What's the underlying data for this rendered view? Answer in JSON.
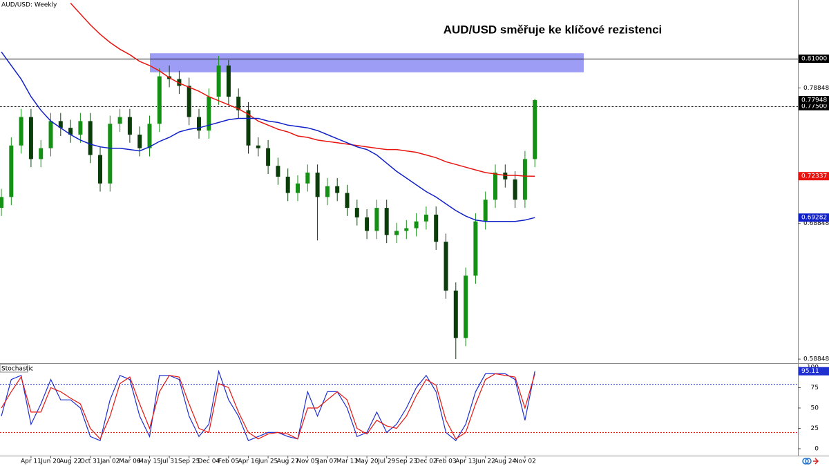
{
  "chart_data": [
    {
      "type": "candlestick",
      "subtitle": "AUD/USD: Weekly",
      "title": "AUD/USD směřuje ke klíčové rezistenci",
      "categories": [
        null,
        null,
        null,
        "Apr 11",
        null,
        "Jun 20",
        null,
        "Aug 22",
        null,
        "Oct 31",
        null,
        "Jan 02",
        null,
        "Mar 06",
        null,
        "May 15",
        null,
        "Jul 31",
        null,
        "Sep 25",
        null,
        "Dec 04",
        null,
        "Feb 05",
        null,
        "Apr 16",
        null,
        "Jun 25",
        null,
        "Aug 27",
        null,
        "Nov 05",
        null,
        "Jan 07",
        null,
        "Mar 11",
        null,
        "May 20",
        null,
        "Jul 29",
        null,
        "Sep 23",
        null,
        "Dec 02",
        null,
        "Feb 03",
        null,
        "Apr 13",
        null,
        "Jun 22",
        null,
        "Aug 24",
        null,
        "Nov 02",
        null
      ],
      "open": [
        0.7,
        0.708,
        0.746,
        0.767,
        0.736,
        0.744,
        0.764,
        0.759,
        0.754,
        0.764,
        0.739,
        0.718,
        0.762,
        0.767,
        0.754,
        0.744,
        0.762,
        0.797,
        0.795,
        0.79,
        0.767,
        0.757,
        0.782,
        0.805,
        0.782,
        0.772,
        0.746,
        0.744,
        0.731,
        0.723,
        0.711,
        0.718,
        0.726,
        0.708,
        0.716,
        0.711,
        0.7,
        0.693,
        0.683,
        0.7,
        0.68,
        0.683,
        0.685,
        0.69,
        0.695,
        0.675,
        0.639,
        0.604,
        0.65,
        0.69,
        0.706,
        0.726,
        0.721,
        0.706,
        0.736
      ],
      "high": [
        0.714,
        0.752,
        0.773,
        0.773,
        0.75,
        0.77,
        0.77,
        0.765,
        0.77,
        0.77,
        0.745,
        0.768,
        0.773,
        0.773,
        0.76,
        0.768,
        0.803,
        0.805,
        0.801,
        0.796,
        0.773,
        0.788,
        0.812,
        0.809,
        0.788,
        0.778,
        0.752,
        0.75,
        0.737,
        0.729,
        0.724,
        0.732,
        0.732,
        0.722,
        0.722,
        0.717,
        0.706,
        0.699,
        0.706,
        0.706,
        0.689,
        0.691,
        0.696,
        0.701,
        0.701,
        0.681,
        0.645,
        0.656,
        0.696,
        0.712,
        0.732,
        0.732,
        0.727,
        0.742,
        0.7805
      ],
      "low": [
        0.694,
        0.702,
        0.74,
        0.73,
        0.73,
        0.738,
        0.753,
        0.748,
        0.748,
        0.733,
        0.712,
        0.712,
        0.756,
        0.748,
        0.738,
        0.738,
        0.756,
        0.789,
        0.784,
        0.761,
        0.751,
        0.751,
        0.776,
        0.776,
        0.766,
        0.74,
        0.738,
        0.725,
        0.717,
        0.705,
        0.705,
        0.712,
        0.676,
        0.702,
        0.705,
        0.694,
        0.687,
        0.677,
        0.677,
        0.674,
        0.674,
        0.677,
        0.679,
        0.684,
        0.669,
        0.633,
        0.5885,
        0.598,
        0.644,
        0.684,
        0.7,
        0.715,
        0.7,
        0.7,
        0.73
      ],
      "close": [
        0.708,
        0.746,
        0.767,
        0.736,
        0.744,
        0.764,
        0.759,
        0.754,
        0.764,
        0.739,
        0.718,
        0.762,
        0.767,
        0.754,
        0.744,
        0.762,
        0.797,
        0.795,
        0.79,
        0.767,
        0.757,
        0.782,
        0.805,
        0.782,
        0.772,
        0.746,
        0.744,
        0.731,
        0.723,
        0.711,
        0.718,
        0.726,
        0.708,
        0.716,
        0.711,
        0.7,
        0.693,
        0.683,
        0.7,
        0.68,
        0.683,
        0.685,
        0.69,
        0.695,
        0.675,
        0.639,
        0.604,
        0.65,
        0.69,
        0.706,
        0.726,
        0.721,
        0.706,
        0.736,
        0.77948
      ],
      "close_label": "0.77948",
      "up_color": "#149114",
      "down_color": "#0b3d0b",
      "lines": [
        {
          "color": "#e8140f",
          "last_label": "0.72337",
          "values": [
            null,
            null,
            null,
            null,
            null,
            null,
            null,
            0.851,
            0.843,
            0.835,
            0.828,
            0.822,
            0.817,
            0.813,
            0.808,
            0.805,
            0.801,
            0.796,
            0.792,
            0.789,
            0.786,
            0.782,
            0.779,
            0.776,
            0.773,
            0.769,
            0.764,
            0.761,
            0.758,
            0.756,
            0.753,
            0.752,
            0.75,
            0.749,
            0.748,
            0.747,
            0.746,
            0.745,
            0.744,
            0.743,
            0.743,
            0.742,
            0.741,
            0.739,
            0.737,
            0.734,
            0.732,
            0.73,
            0.728,
            0.726,
            0.725,
            0.724,
            0.724,
            0.7234,
            0.72337
          ]
        },
        {
          "color": "#1020c8",
          "last_label": "0.69282",
          "values": [
            0.815,
            0.805,
            0.795,
            0.782,
            0.772,
            0.764,
            0.759,
            0.754,
            0.75,
            0.747,
            0.745,
            0.744,
            0.744,
            0.743,
            0.742,
            0.745,
            0.749,
            0.752,
            0.756,
            0.758,
            0.759,
            0.761,
            0.763,
            0.765,
            0.766,
            0.766,
            0.766,
            0.764,
            0.763,
            0.761,
            0.76,
            0.759,
            0.757,
            0.754,
            0.751,
            0.748,
            0.745,
            0.743,
            0.739,
            0.733,
            0.727,
            0.722,
            0.717,
            0.712,
            0.708,
            0.703,
            0.698,
            0.694,
            0.691,
            0.69,
            0.69,
            0.69,
            0.69,
            0.691,
            0.69282
          ]
        }
      ],
      "levels": [
        {
          "value": 0.81,
          "label": "0.81000",
          "style": "solid"
        },
        {
          "value": 0.775,
          "label": "0.77500",
          "style": "dotted"
        }
      ],
      "zones": [
        {
          "from": 0.8,
          "to": 0.814,
          "color": "#8c8cf5"
        }
      ],
      "ylim": [
        0.586,
        0.8533
      ],
      "yticks": [
        0.58848,
        0.68848,
        0.78848
      ]
    },
    {
      "type": "stochastic",
      "title": "Stochastic",
      "series": [
        {
          "color": "#1f2fd0",
          "values": [
            40,
            85,
            90,
            30,
            55,
            85,
            60,
            60,
            50,
            15,
            10,
            60,
            90,
            85,
            40,
            15,
            90,
            90,
            85,
            40,
            15,
            30,
            95,
            60,
            40,
            10,
            15,
            20,
            20,
            15,
            12,
            70,
            40,
            70,
            70,
            50,
            15,
            20,
            45,
            20,
            30,
            50,
            75,
            90,
            70,
            20,
            10,
            30,
            70,
            92,
            92,
            92,
            85,
            35,
            95.11
          ]
        },
        {
          "color": "#e8140f",
          "values": [
            50,
            70,
            88,
            45,
            45,
            75,
            70,
            62,
            55,
            25,
            12,
            40,
            80,
            88,
            55,
            25,
            70,
            90,
            88,
            55,
            25,
            20,
            80,
            75,
            45,
            20,
            12,
            18,
            20,
            18,
            12,
            50,
            50,
            60,
            70,
            60,
            25,
            18,
            35,
            28,
            25,
            40,
            65,
            85,
            78,
            35,
            12,
            20,
            55,
            85,
            92,
            90,
            88,
            50,
            92
          ]
        }
      ],
      "last_label": "95.11",
      "levels": [
        20,
        80
      ],
      "level_colors": [
        "#e8140f",
        "#1f2fd0"
      ],
      "ylim": [
        -8.5,
        104.2
      ],
      "yticks": [
        0,
        25,
        50,
        75,
        100
      ]
    }
  ]
}
